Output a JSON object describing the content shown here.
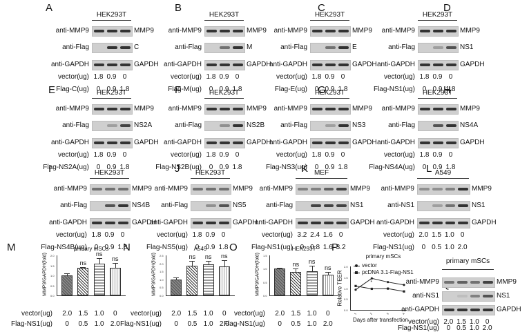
{
  "panels_wb": [
    {
      "id": "A",
      "title": "HEK293T",
      "rows": [
        "anti-MMP9",
        "anti-Flag",
        "anti-GAPDH"
      ],
      "right": [
        "MMP9",
        "C",
        "GAPDH"
      ],
      "vector_label": "vector(ug)",
      "flag_label": "Flag-C(ug)",
      "vector": [
        "1.8",
        "0.9",
        "0"
      ],
      "flag": [
        "0",
        "0.9",
        "1.8"
      ]
    },
    {
      "id": "B",
      "title": "HEK293T",
      "rows": [
        "anti-MMP9",
        "anti-Flag",
        "anti-GAPDH"
      ],
      "right": [
        "MMP9",
        "M",
        "GAPDH"
      ],
      "vector_label": "vector(ug)",
      "flag_label": "Flag-M(ug)",
      "vector": [
        "1.8",
        "0.9",
        "0"
      ],
      "flag": [
        "0",
        "0.9",
        "1.8"
      ]
    },
    {
      "id": "C",
      "title": "HEK293T",
      "rows": [
        "anti-MMP9",
        "anti-Flag",
        "anti-GAPDH"
      ],
      "right": [
        "MMP9",
        "E",
        "GAPDH"
      ],
      "vector_label": "vector(ug)",
      "flag_label": "Flag-E(ug)",
      "vector": [
        "1.8",
        "0.9",
        "0"
      ],
      "flag": [
        "0",
        "0.9",
        "1.8"
      ]
    },
    {
      "id": "D",
      "title": "HEK293T",
      "rows": [
        "anti-MMP9",
        "anti-Flag",
        "anti-GAPDH"
      ],
      "right": [
        "MMP9",
        "NS1",
        "GAPDH"
      ],
      "vector_label": "vector(ug)",
      "flag_label": "Flag-NS1(ug)",
      "vector": [
        "1.8",
        "0.9",
        "0"
      ],
      "flag": [
        "0",
        "0.9",
        "1.8"
      ]
    },
    {
      "id": "E",
      "title": "HEK293T",
      "rows": [
        "anti-MMP9",
        "anti-Flag",
        "anti-GAPDH"
      ],
      "right": [
        "MMP9",
        "NS2A",
        "GAPDH"
      ],
      "vector_label": "vector(ug)",
      "flag_label": "Flag-NS2A(ug)",
      "vector": [
        "1.8",
        "0.9",
        "0"
      ],
      "flag": [
        "0",
        "0.9",
        "1.8"
      ]
    },
    {
      "id": "F",
      "title": "HEK293T",
      "rows": [
        "anti-MMP9",
        "anti-Flag",
        "anti-GAPDH"
      ],
      "right": [
        "MMP9",
        "NS2B",
        "GAPDH"
      ],
      "vector_label": "vector(ug)",
      "flag_label": "Flag-NS2B(ug)",
      "vector": [
        "1.8",
        "0.9",
        "0"
      ],
      "flag": [
        "0",
        "0.9",
        "1.8"
      ]
    },
    {
      "id": "G",
      "title": "HEK293T",
      "rows": [
        "anti-MMP9",
        "anti-Flag",
        "anti-GAPDH"
      ],
      "right": [
        "MMP9",
        "NS3",
        "GAPDH"
      ],
      "vector_label": "vector(ug)",
      "flag_label": "Flag-NS3(ug)",
      "vector": [
        "1.8",
        "0.9",
        "0"
      ],
      "flag": [
        "0",
        "0.9",
        "1.8"
      ]
    },
    {
      "id": "H",
      "title": "HEK293T",
      "rows": [
        "anti-MMP9",
        "anti-Flag",
        "anti-GAPDH"
      ],
      "right": [
        "MMP9",
        "NS4A",
        "GAPDH"
      ],
      "vector_label": "vector(ug)",
      "flag_label": "Flag-NS4A(ug)",
      "vector": [
        "1.8",
        "0.9",
        "0"
      ],
      "flag": [
        "0",
        "0.9",
        "1.8"
      ]
    },
    {
      "id": "I",
      "title": "HEK293T",
      "rows": [
        "anti-MMP9",
        "anti-Flag",
        "anti-GAPDH"
      ],
      "right": [
        "MMP9",
        "NS4B",
        "GAPDH"
      ],
      "vector_label": "vector(ug)",
      "flag_label": "Flag-NS4B(ug)",
      "vector": [
        "1.8",
        "0.9",
        "0"
      ],
      "flag": [
        "0",
        "0.9",
        "1.8"
      ]
    },
    {
      "id": "J",
      "title": "HEK293T",
      "rows": [
        "anti-MMP9",
        "anti-Flag",
        "anti-GAPDH"
      ],
      "right": [
        "MMP9",
        "NS5",
        "GAPDH"
      ],
      "vector_label": "vector(ug)",
      "flag_label": "Flag-NS5(ug)",
      "vector": [
        "1.8",
        "0.9",
        "0"
      ],
      "flag": [
        "0",
        "0.9",
        "1.8"
      ]
    },
    {
      "id": "K",
      "title": "MEF",
      "rows": [
        "anti-MMP9",
        "anti-Flag",
        "anti-GAPDH"
      ],
      "right": [
        "MMP9",
        "NS1",
        "GAPDH"
      ],
      "vector_label": "vector(ug)",
      "flag_label": "Flag-NS1(ug)",
      "vector": [
        "3.2",
        "2.4",
        "1.6",
        "0"
      ],
      "flag": [
        "0",
        "0.8",
        "1.6",
        "3.2"
      ]
    },
    {
      "id": "L",
      "title": "A549",
      "rows": [
        "anti-MMP9",
        "anti-NS1",
        "anti-GAPDH"
      ],
      "right": [
        "MMP9",
        "NS1",
        "GAPDH"
      ],
      "vector_label": "vector(ug)",
      "flag_label": "Flag-NS1(ug)",
      "vector": [
        "2.0",
        "1.5",
        "1.0",
        "0"
      ],
      "flag": [
        "0",
        "0.5",
        "1.0",
        "2.0"
      ]
    },
    {
      "id": "Q",
      "title": "primary mSCs",
      "rows": [
        "anti-MMP9",
        "anti-NS1",
        "anti-GAPDH"
      ],
      "right": [
        "MMP9",
        "NS1",
        "GAPDH"
      ],
      "vector_label": "vector(ug)",
      "flag_label": "Flag-NS1(ug)",
      "vector": [
        "2.0",
        "1.5",
        "1.0",
        "0"
      ],
      "flag": [
        "0",
        "0.5",
        "1.0",
        "2.0"
      ]
    }
  ],
  "chart_data": [
    {
      "panel": "M",
      "type": "bar",
      "title": "primary mSCs",
      "ylabel": "MMP9/GAPDH(fold)",
      "ylim": [
        0,
        2.0
      ],
      "yticks": [
        "0.0",
        "0.5",
        "1.0",
        "1.5",
        "2.0"
      ],
      "categories": [
        "2.0/0",
        "1.5/0.5",
        "1.0/1.0",
        "0/2.0"
      ],
      "values": [
        1.0,
        1.38,
        1.6,
        1.38
      ],
      "errors": [
        0.12,
        0.03,
        0.25,
        0.25
      ],
      "annotations": [
        "",
        "ns",
        "ns",
        "ns"
      ],
      "vector_label": "vector(ug)",
      "flag_label": "Flag-NS1(ug)",
      "vector": [
        "2.0",
        "1.5",
        "1.0",
        "0"
      ],
      "flag": [
        "0",
        "0.5",
        "1.0",
        "2.0"
      ]
    },
    {
      "panel": "N",
      "type": "bar",
      "title": "A549",
      "ylabel": "MMP9/GAPDH(fold)",
      "ylim": [
        0,
        2.5
      ],
      "yticks": [
        "0.0",
        "0.5",
        "1.0",
        "1.5",
        "2.0",
        "2.5"
      ],
      "categories": [
        "2.0/0",
        "1.5/0.5",
        "1.0/1.0",
        "0/2.0"
      ],
      "values": [
        1.0,
        1.85,
        1.95,
        1.8
      ],
      "errors": [
        0.12,
        0.3,
        0.2,
        0.38
      ],
      "annotations": [
        "",
        "ns",
        "ns",
        "ns"
      ],
      "vector_label": "vector(ug)",
      "flag_label": "Flag-NS1(ug)",
      "vector": [
        "2.0",
        "1.5",
        "1.0",
        "0"
      ],
      "flag": [
        "0",
        "0.5",
        "1.0",
        "2.0"
      ]
    },
    {
      "panel": "O",
      "type": "bar",
      "title": "HEK293T",
      "ylabel": "MMP9/GAPDH(fold)",
      "ylim": [
        0,
        1.5
      ],
      "yticks": [
        "0.0",
        "0.5",
        "1.0",
        "1.5"
      ],
      "categories": [
        "2.0/0",
        "1.5/0.5",
        "1.0/1.0",
        "0/2.0"
      ],
      "values": [
        1.0,
        0.88,
        0.9,
        0.78
      ],
      "errors": [
        0.04,
        0.12,
        0.2,
        0.1
      ],
      "annotations": [
        "",
        "ns",
        "ns",
        "ns"
      ],
      "vector_label": "vector(ug)",
      "flag_label": "Flag-NS1(ug)",
      "vector": [
        "2.0",
        "1.5",
        "1.0",
        "0"
      ],
      "flag": [
        "0",
        "0.5",
        "1.0",
        "2.0"
      ]
    },
    {
      "panel": "P",
      "type": "line",
      "title": "primary mSCs",
      "ylabel": "Relative TEER",
      "xlabel": "Days after transfection",
      "ylim": [
        0,
        2.0
      ],
      "yticks": [
        "0.0",
        "0.5",
        "1.0",
        "1.5",
        "2.0"
      ],
      "x": [
        "1",
        "2",
        "3",
        "4"
      ],
      "series": [
        {
          "name": "vector",
          "values": [
            0.93,
            1.45,
            1.28,
            1.15
          ]
        },
        {
          "name": "pcDNA 3.1-Flag-NS1",
          "values": [
            1.1,
            0.97,
            0.98,
            0.85
          ]
        }
      ],
      "annotations": [
        {
          "x": "2",
          "text": "*"
        }
      ],
      "legend_position": "top-left"
    }
  ]
}
